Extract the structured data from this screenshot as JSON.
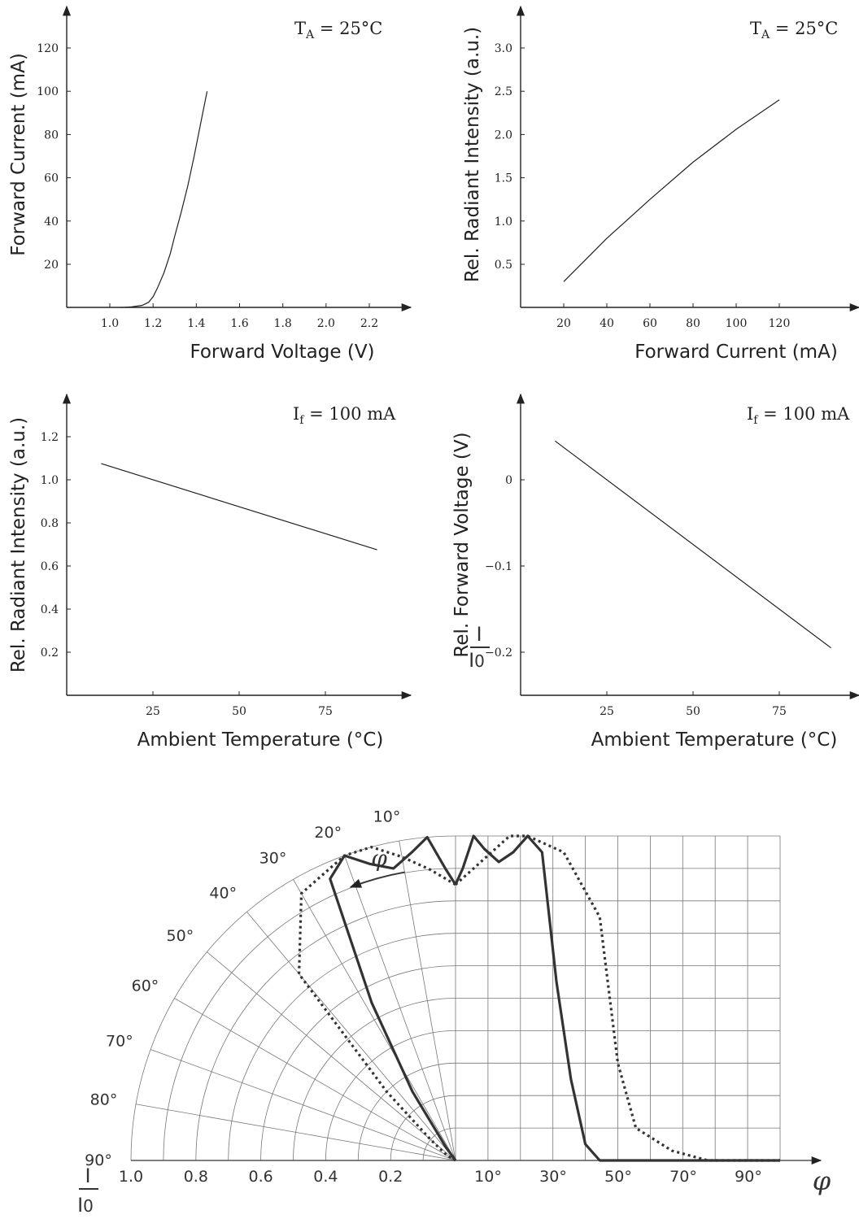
{
  "chart_data": [
    {
      "type": "line",
      "xlabel": "Forward Voltage (V)",
      "ylabel": "Forward Current (mA)",
      "condition": {
        "main": "T",
        "sub": "A",
        "rest": " = 25°C"
      },
      "xticks": [
        "1.0",
        "1.2",
        "1.4",
        "1.6",
        "1.8",
        "2.0",
        "2.2"
      ],
      "yticks": [
        "20",
        "40",
        "60",
        "80",
        "100",
        "120"
      ],
      "xlim": [
        0.8,
        2.4
      ],
      "ylim": [
        0,
        130
      ],
      "series": [
        {
          "x": [
            1.05,
            1.1,
            1.15,
            1.18,
            1.2,
            1.22,
            1.25,
            1.28,
            1.3,
            1.33,
            1.36,
            1.39,
            1.42,
            1.45
          ],
          "y": [
            0,
            0.3,
            1,
            2.5,
            5,
            9,
            16,
            25,
            33,
            44,
            56,
            70,
            85,
            100
          ]
        }
      ]
    },
    {
      "type": "line",
      "xlabel": "Forward Current (mA)",
      "ylabel": "Rel. Radiant Intensity (a.u.)",
      "condition": {
        "main": "T",
        "sub": "A",
        "rest": " = 25°C"
      },
      "xticks": [
        "20",
        "40",
        "60",
        "80",
        "100",
        "120"
      ],
      "yticks": [
        "0.5",
        "1.0",
        "1.5",
        "2.0",
        "2.5",
        "3.0"
      ],
      "xlim": [
        0,
        160
      ],
      "ylim": [
        0,
        3.4
      ],
      "series": [
        {
          "x": [
            20,
            40,
            60,
            80,
            100,
            120
          ],
          "y": [
            0.3,
            0.8,
            1.25,
            1.68,
            2.06,
            2.4
          ]
        }
      ]
    },
    {
      "type": "line",
      "xlabel": "Ambient Temperature (°C)",
      "ylabel": "Rel. Radiant Intensity (a.u.)",
      "condition": {
        "main": "I",
        "sub": "f",
        "rest": " = 100 mA"
      },
      "xticks": [
        "25",
        "50",
        "75"
      ],
      "yticks": [
        "0.2",
        "0.4",
        "0.6",
        "0.8",
        "1.0",
        "1.2"
      ],
      "xlim": [
        0,
        100
      ],
      "ylim": [
        0,
        1.35
      ],
      "series": [
        {
          "x": [
            10,
            90
          ],
          "y": [
            1.075,
            0.675
          ]
        }
      ]
    },
    {
      "type": "line",
      "xlabel": "Ambient Temperature (°C)",
      "ylabel": "Rel. Forward Voltage (V)",
      "condition": {
        "main": "I",
        "sub": "f",
        "rest": " = 100 mA"
      },
      "xticks": [
        "25",
        "50",
        "75"
      ],
      "yticks": [
        "0",
        "−0.1",
        "−0.2"
      ],
      "ytick_values": [
        0,
        -0.1,
        -0.2
      ],
      "xlim": [
        0,
        100
      ],
      "ylim": [
        -0.25,
        0.1
      ],
      "series": [
        {
          "x": [
            10,
            90
          ],
          "y": [
            0.045,
            -0.195
          ]
        }
      ]
    },
    {
      "type": "polar",
      "angle_labels": [
        "10°",
        "20°",
        "30°",
        "40°",
        "50°",
        "60°",
        "70°",
        "80°",
        "90°"
      ],
      "radial_labels": [
        "1.0",
        "0.8",
        "0.6",
        "0.4",
        "0.2"
      ],
      "angle_axis_labels": [
        "10°",
        "30°",
        "50°",
        "70°",
        "90°"
      ],
      "intensity_label": {
        "num": "I",
        "den": "I",
        "den_sub": "0"
      },
      "phi_label": "φ",
      "series": [
        {
          "style": "solid",
          "points": [
            [
              0,
              0.85
            ],
            [
              2,
              0.9
            ],
            [
              5,
              1.0
            ],
            [
              8,
              0.96
            ],
            [
              12,
              0.92
            ],
            [
              16,
              0.95
            ],
            [
              20,
              1.0
            ],
            [
              24,
              0.95
            ],
            [
              28,
              0.55
            ],
            [
              32,
              0.25
            ],
            [
              36,
              0.05
            ],
            [
              40,
              0.0
            ],
            [
              50,
              0.0
            ],
            [
              70,
              0.0
            ],
            [
              90,
              0.0
            ]
          ]
        },
        {
          "style": "dotted",
          "points": [
            [
              0,
              0.85
            ],
            [
              5,
              0.9
            ],
            [
              10,
              0.95
            ],
            [
              15,
              1.0
            ],
            [
              20,
              1.0
            ],
            [
              30,
              0.95
            ],
            [
              40,
              0.75
            ],
            [
              45,
              0.3
            ],
            [
              50,
              0.1
            ],
            [
              60,
              0.03
            ],
            [
              70,
              0.0
            ],
            [
              90,
              0.0
            ]
          ]
        }
      ]
    }
  ]
}
